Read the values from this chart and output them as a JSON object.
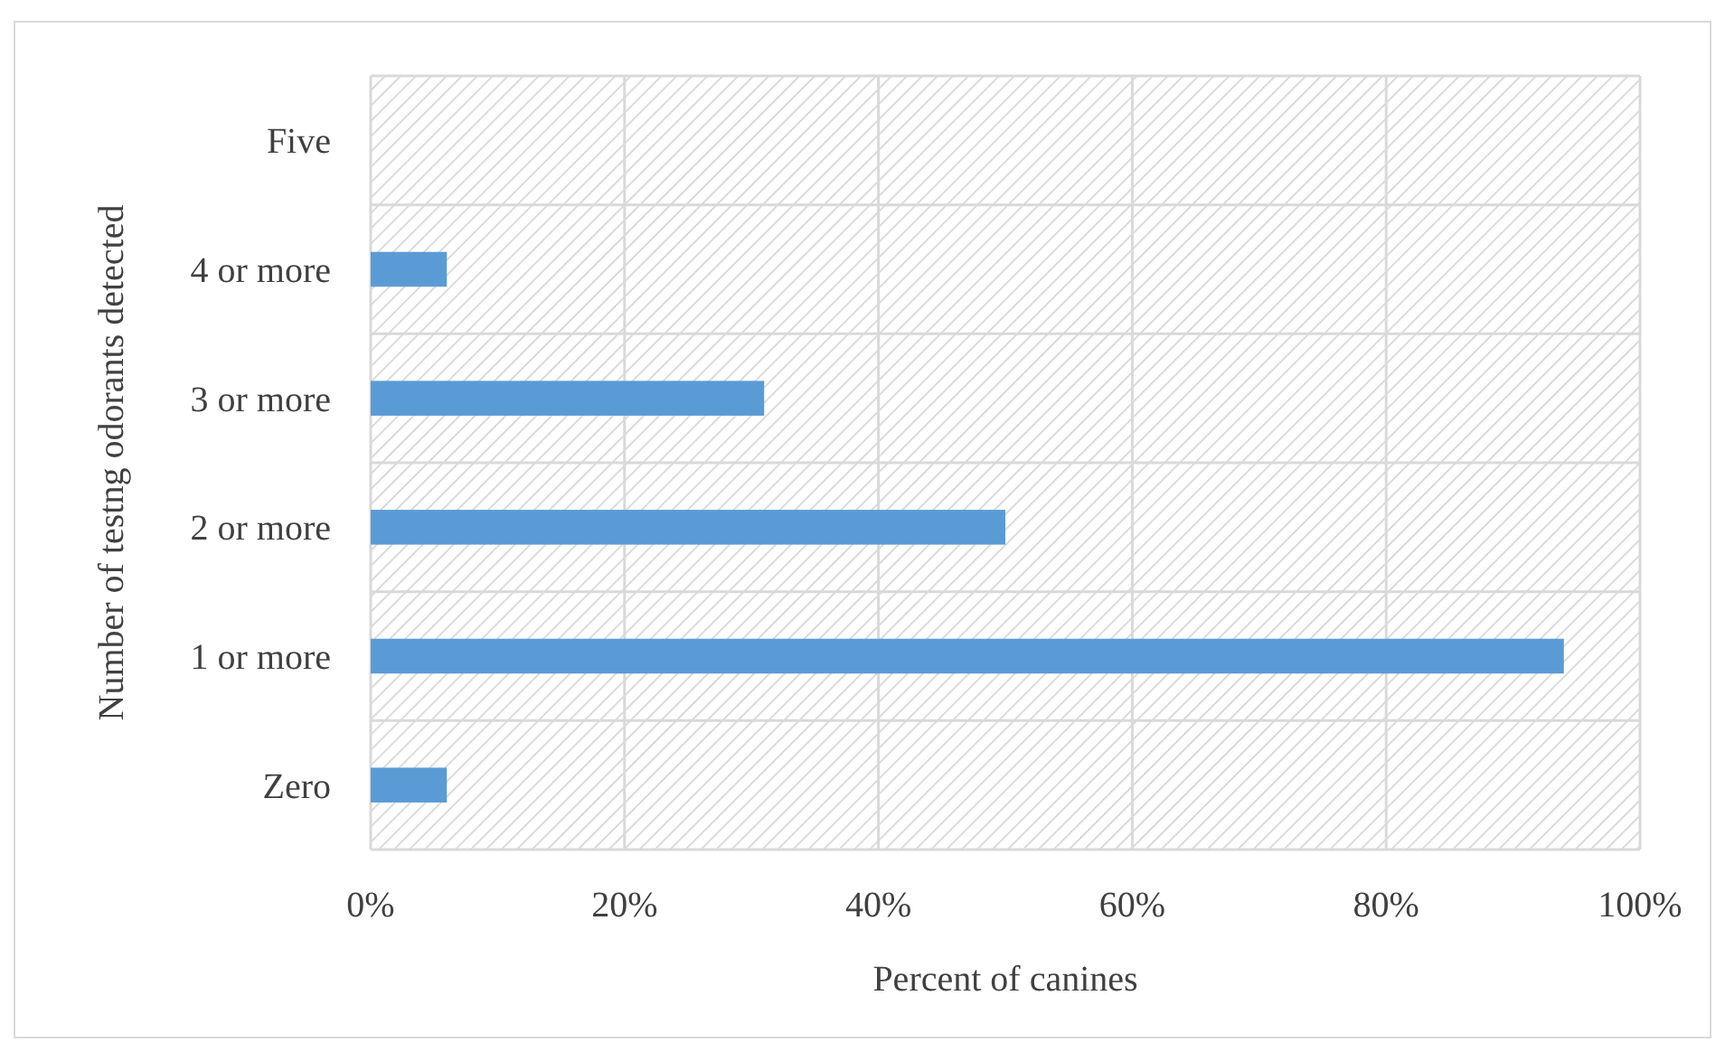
{
  "chart_data": {
    "type": "bar",
    "orientation": "horizontal",
    "xlabel": "Percent of canines",
    "ylabel": "Number of testng odorants detected",
    "categories": [
      "Five",
      "4 or more",
      "3 or more",
      "2 or more",
      "1 or more",
      "Zero"
    ],
    "values": [
      0,
      6,
      31,
      50,
      94,
      6
    ],
    "color": "#5b9bd5",
    "xlim": [
      0,
      100
    ],
    "xticks": [
      {
        "value": 0,
        "label": "0%"
      },
      {
        "value": 20,
        "label": "20%"
      },
      {
        "value": 40,
        "label": "40%"
      },
      {
        "value": 60,
        "label": "60%"
      },
      {
        "value": 80,
        "label": "80%"
      },
      {
        "value": 100,
        "label": "100%"
      }
    ],
    "grid": true
  }
}
